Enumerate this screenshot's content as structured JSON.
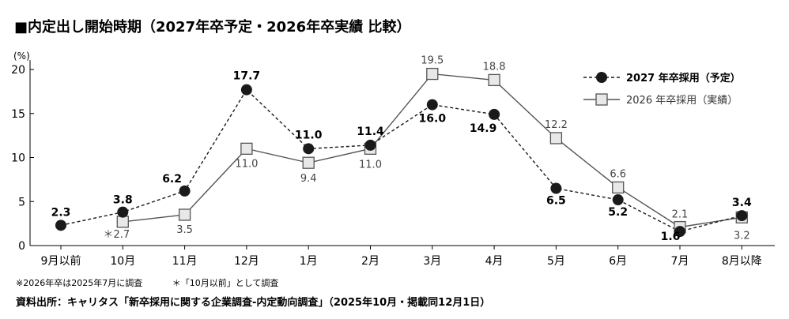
{
  "title": "■内定出し開始時期（2027年卒予定・2026年卒実績 比較）",
  "note_1": "※2026年卒は2025年7月に調査",
  "note_2": "＊「10月以前」として調査",
  "source": "資料出所：キャリタス「新卒採用に関する企業調査-内定動向調査」（2025年10月・掲載同12月1日）",
  "chart_data": {
    "type": "line",
    "categories": [
      "9月以前",
      "10月",
      "11月",
      "12月",
      "1月",
      "2月",
      "3月",
      "4月",
      "5月",
      "6月",
      "7月",
      "8月以降"
    ],
    "ylabel": "(%)",
    "ylim": [
      0,
      20
    ],
    "yticks": [
      "0",
      "5",
      "10",
      "15",
      "20"
    ],
    "grid": false,
    "legend_position": "top-right",
    "series": [
      {
        "name": "2027 年卒採用（予定）",
        "style": "dashed-circle",
        "color": "#1a1a1a",
        "values": [
          2.3,
          3.8,
          6.2,
          17.7,
          11.0,
          11.4,
          16.0,
          14.9,
          6.5,
          5.2,
          1.6,
          3.4
        ],
        "labels": [
          "2.3",
          "3.8",
          "6.2",
          "17.7",
          "11.0",
          "11.4",
          "16.0",
          "14.9",
          "6.5",
          "5.2",
          "1.6",
          "3.4"
        ]
      },
      {
        "name": "2026 年卒採用（実績）",
        "style": "solid-square",
        "color": "#555555",
        "values": [
          null,
          2.7,
          3.5,
          11.0,
          9.4,
          11.0,
          19.5,
          18.8,
          12.2,
          6.6,
          2.1,
          3.2
        ],
        "labels": [
          "",
          "＊2.7",
          "3.5",
          "11.0",
          "9.4",
          "11.0",
          "19.5",
          "18.8",
          "12.2",
          "6.6",
          "2.1",
          "3.2"
        ]
      }
    ]
  }
}
